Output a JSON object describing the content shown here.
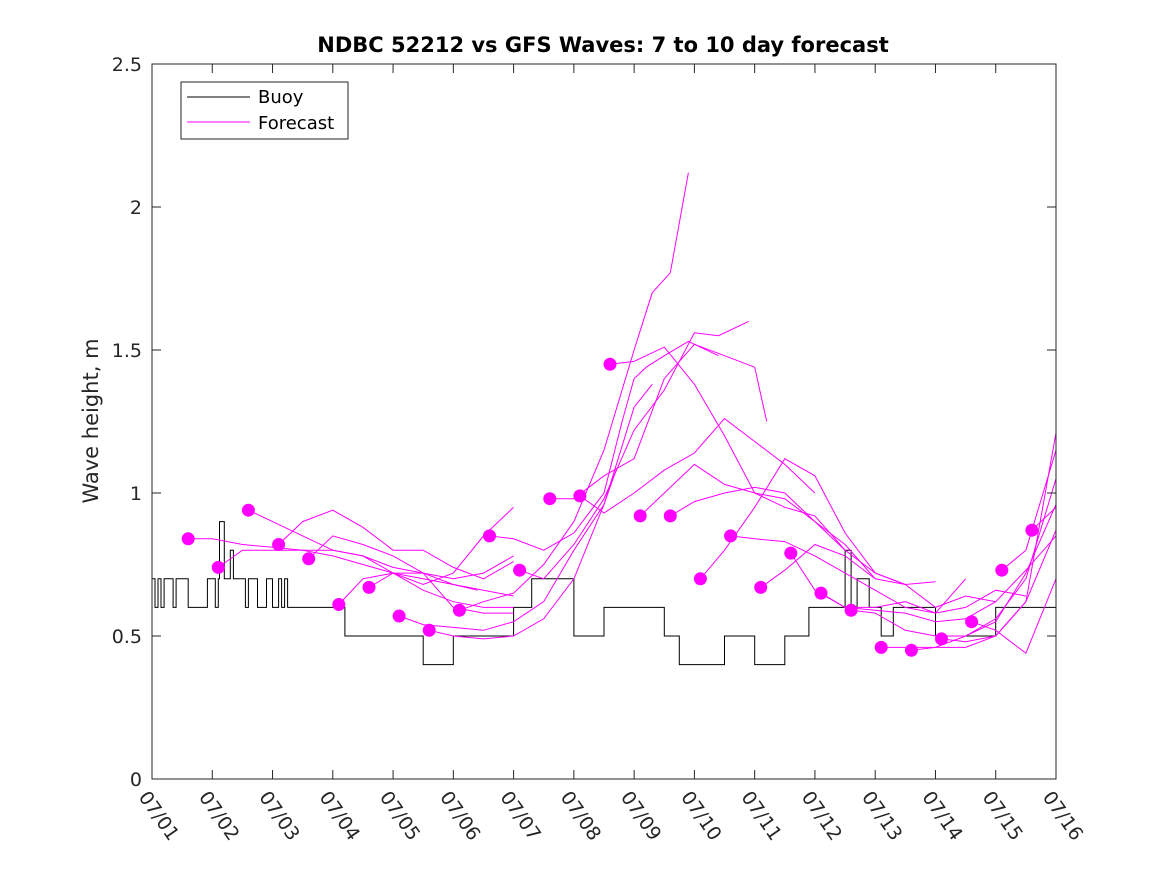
{
  "chart_data": {
    "type": "line",
    "title": "NDBC 52212 vs GFS Waves: 7 to 10 day forecast",
    "xlabel": "",
    "ylabel": "Wave height, m",
    "xlim": [
      0,
      15
    ],
    "ylim": [
      0,
      2.5
    ],
    "x_ticks": [
      0,
      1,
      2,
      3,
      4,
      5,
      6,
      7,
      8,
      9,
      10,
      11,
      12,
      13,
      14,
      15
    ],
    "x_tick_labels": [
      "07/01",
      "07/02",
      "07/03",
      "07/04",
      "07/05",
      "07/06",
      "07/07",
      "07/08",
      "07/09",
      "07/10",
      "07/11",
      "07/12",
      "07/13",
      "07/14",
      "07/15",
      "07/16"
    ],
    "y_ticks": [
      0,
      0.5,
      1,
      1.5,
      2,
      2.5
    ],
    "y_tick_labels": [
      "0",
      "0.5",
      "1",
      "1.5",
      "2",
      "2.5"
    ],
    "grid": false,
    "legend": {
      "placement": "top-left",
      "entries": [
        {
          "label": "Buoy",
          "color": "#000000"
        },
        {
          "label": "Forecast",
          "color": "#ff00ff"
        }
      ]
    },
    "colors": {
      "buoy": "#000000",
      "forecast": "#ff00ff"
    },
    "buoy": {
      "name": "Buoy",
      "x": [
        0,
        0.05,
        0.1,
        0.15,
        0.2,
        0.3,
        0.35,
        0.4,
        0.5,
        0.6,
        0.7,
        0.8,
        0.9,
        0.92,
        1.0,
        1.05,
        1.1,
        1.12,
        1.2,
        1.25,
        1.3,
        1.35,
        1.4,
        1.5,
        1.55,
        1.6,
        1.65,
        1.75,
        1.8,
        1.9,
        2.0,
        2.1,
        2.15,
        2.2,
        2.25,
        2.3,
        2.35,
        2.4,
        2.5,
        2.6,
        2.7,
        2.9,
        3.0,
        3.1,
        3.2,
        3.4,
        3.6,
        3.8,
        4.0,
        4.5,
        5.0,
        5.5,
        6.0,
        6.3,
        7.0,
        7.5,
        8.0,
        8.5,
        8.75,
        9.0,
        9.25,
        9.5,
        9.75,
        10.0,
        10.5,
        10.9,
        11.5,
        11.6,
        11.7,
        11.9,
        12.1,
        12.3,
        12.7,
        13.0,
        13.2,
        13.7,
        14.0,
        14.5,
        14.7,
        15.0
      ],
      "y": [
        0.7,
        0.6,
        0.7,
        0.6,
        0.7,
        0.7,
        0.6,
        0.7,
        0.7,
        0.6,
        0.6,
        0.6,
        0.6,
        0.7,
        0.7,
        0.6,
        0.7,
        0.9,
        0.7,
        0.7,
        0.8,
        0.7,
        0.7,
        0.7,
        0.6,
        0.7,
        0.7,
        0.6,
        0.6,
        0.7,
        0.6,
        0.7,
        0.6,
        0.7,
        0.6,
        0.6,
        0.6,
        0.6,
        0.6,
        0.6,
        0.6,
        0.6,
        0.6,
        0.6,
        0.5,
        0.5,
        0.5,
        0.5,
        0.5,
        0.4,
        0.5,
        0.5,
        0.6,
        0.7,
        0.5,
        0.6,
        0.6,
        0.5,
        0.4,
        0.4,
        0.4,
        0.5,
        0.5,
        0.4,
        0.5,
        0.6,
        0.8,
        0.6,
        0.7,
        0.6,
        0.5,
        0.6,
        0.6,
        0.5,
        0.5,
        0.5,
        0.6,
        0.6,
        0.6,
        0.6
      ]
    },
    "forecast_lines": [
      {
        "x": [
          0.6,
          1.0,
          1.5,
          2.0,
          2.5,
          3.0,
          3.5,
          4.0,
          4.5,
          5.0,
          5.4
        ],
        "y": [
          0.84,
          0.84,
          0.82,
          0.81,
          0.8,
          0.78,
          0.75,
          0.72,
          0.7,
          0.68,
          0.66
        ]
      },
      {
        "x": [
          1.1,
          1.5,
          2.0,
          2.5,
          3.0,
          3.5,
          4.0,
          4.5,
          5.0,
          5.5,
          6.0
        ],
        "y": [
          0.74,
          0.8,
          0.8,
          0.8,
          0.8,
          0.78,
          0.72,
          0.66,
          0.62,
          0.6,
          0.6
        ]
      },
      {
        "x": [
          1.6,
          2.0,
          2.5,
          3.0,
          3.5,
          4.0,
          4.5,
          5.0,
          5.5,
          6.0
        ],
        "y": [
          0.94,
          0.9,
          0.85,
          0.8,
          0.78,
          0.74,
          0.72,
          0.7,
          0.72,
          0.78
        ]
      },
      {
        "x": [
          2.1,
          2.5,
          3.0,
          3.5,
          4.0,
          4.5,
          5.0,
          5.5,
          6.0
        ],
        "y": [
          0.82,
          0.9,
          0.94,
          0.88,
          0.8,
          0.8,
          0.74,
          0.7,
          0.76
        ]
      },
      {
        "x": [
          2.6,
          3.0,
          3.5,
          4.0,
          4.5,
          5.0,
          5.5,
          6.0
        ],
        "y": [
          0.77,
          0.85,
          0.82,
          0.78,
          0.72,
          0.68,
          0.66,
          0.64
        ]
      },
      {
        "x": [
          3.1,
          3.5,
          4.0,
          4.5,
          5.0,
          5.5,
          6.0
        ],
        "y": [
          0.61,
          0.7,
          0.72,
          0.68,
          0.72,
          0.85,
          0.95
        ]
      },
      {
        "x": [
          3.6,
          4.0,
          4.5,
          5.0,
          5.5,
          6.0
        ],
        "y": [
          0.67,
          0.72,
          0.72,
          0.6,
          0.58,
          0.58
        ]
      },
      {
        "x": [
          4.1,
          4.5,
          5.0,
          5.5,
          6.0,
          6.5,
          7.0,
          7.5,
          7.7
        ],
        "y": [
          0.57,
          0.54,
          0.53,
          0.52,
          0.55,
          0.62,
          0.8,
          0.96,
          1.08
        ]
      },
      {
        "x": [
          4.6,
          5.0,
          5.5,
          6.0,
          6.5,
          7.0,
          7.5,
          8.0,
          8.3
        ],
        "y": [
          0.52,
          0.5,
          0.49,
          0.5,
          0.56,
          0.7,
          0.96,
          1.3,
          1.38
        ]
      },
      {
        "x": [
          5.1,
          5.5,
          6.0,
          6.5,
          7.0,
          7.5,
          8.0,
          8.3,
          8.6,
          8.9
        ],
        "y": [
          0.59,
          0.62,
          0.65,
          0.75,
          0.9,
          1.15,
          1.5,
          1.7,
          1.77,
          2.12
        ]
      },
      {
        "x": [
          5.6,
          6.0,
          6.5,
          7.0,
          7.5,
          7.8,
          8.0,
          8.2,
          8.5,
          8.9,
          9.4
        ],
        "y": [
          0.85,
          0.84,
          0.8,
          0.86,
          1.0,
          1.25,
          1.4,
          1.44,
          1.48,
          1.53,
          1.48
        ]
      },
      {
        "x": [
          6.1,
          6.5,
          7.0,
          7.5,
          8.0,
          8.5,
          9.0,
          9.4,
          9.9
        ],
        "y": [
          0.73,
          0.7,
          0.82,
          0.98,
          1.22,
          1.36,
          1.56,
          1.55,
          1.6
        ]
      },
      {
        "x": [
          6.6,
          7.0,
          7.5,
          8.0,
          8.5,
          9.0,
          9.5,
          10.0,
          10.2
        ],
        "y": [
          0.98,
          0.98,
          1.06,
          1.12,
          1.4,
          1.52,
          1.48,
          1.44,
          1.25
        ]
      },
      {
        "x": [
          7.1,
          7.5,
          8.0,
          8.5,
          9.0,
          9.5,
          10.0,
          10.5,
          11.0
        ],
        "y": [
          0.99,
          0.93,
          1.0,
          1.08,
          1.14,
          1.26,
          1.18,
          1.1,
          1.0
        ]
      },
      {
        "x": [
          7.6,
          8.0,
          8.5,
          9.0,
          9.5,
          10.0,
          10.5,
          11.0,
          11.5
        ],
        "y": [
          1.45,
          1.46,
          1.51,
          1.38,
          1.2,
          1.0,
          0.95,
          0.92,
          0.8
        ]
      },
      {
        "x": [
          8.1,
          8.5,
          9.0,
          9.5,
          10.0,
          10.5,
          11.0,
          11.5,
          12.0
        ],
        "y": [
          0.92,
          1.0,
          1.1,
          1.03,
          1.0,
          0.98,
          0.9,
          0.82,
          0.7
        ]
      },
      {
        "x": [
          8.6,
          9.0,
          9.5,
          10.0,
          10.5,
          11.0,
          11.5,
          12.0,
          12.5
        ],
        "y": [
          0.92,
          0.97,
          1.0,
          1.02,
          1.0,
          0.9,
          0.8,
          0.72,
          0.68
        ]
      },
      {
        "x": [
          9.1,
          9.5,
          10.0,
          10.5,
          11.0,
          11.5,
          12.0,
          12.5,
          13.0
        ],
        "y": [
          0.7,
          0.8,
          0.95,
          1.12,
          1.06,
          0.86,
          0.72,
          0.68,
          0.69
        ]
      },
      {
        "x": [
          9.6,
          10.0,
          10.5,
          11.0,
          11.5,
          12.0,
          12.5,
          13.0,
          13.5
        ],
        "y": [
          0.85,
          0.84,
          0.83,
          0.78,
          0.72,
          0.66,
          0.6,
          0.58,
          0.7
        ]
      },
      {
        "x": [
          10.1,
          10.5,
          11.0,
          11.5,
          12.0,
          12.5,
          13.0,
          13.5,
          14.0
        ],
        "y": [
          0.67,
          0.73,
          0.82,
          0.78,
          0.7,
          0.68,
          0.6,
          0.64,
          0.62
        ]
      },
      {
        "x": [
          10.6,
          11.0,
          11.5,
          12.0,
          12.5,
          13.0,
          13.5,
          14.0,
          14.5
        ],
        "y": [
          0.79,
          0.66,
          0.6,
          0.6,
          0.62,
          0.58,
          0.6,
          0.66,
          0.64
        ]
      },
      {
        "x": [
          11.1,
          11.5,
          12.0,
          12.5,
          13.0,
          13.5,
          14.0,
          14.5,
          15.0
        ],
        "y": [
          0.65,
          0.6,
          0.59,
          0.58,
          0.55,
          0.56,
          0.62,
          0.73,
          0.85
        ]
      },
      {
        "x": [
          11.6,
          12.0,
          12.5,
          13.0,
          13.5,
          14.0,
          14.5,
          15.0
        ],
        "y": [
          0.59,
          0.58,
          0.52,
          0.5,
          0.5,
          0.55,
          0.72,
          0.96
        ]
      },
      {
        "x": [
          12.1,
          12.5,
          13.0,
          13.5,
          14.0,
          14.5,
          15.0
        ],
        "y": [
          0.46,
          0.46,
          0.46,
          0.5,
          0.56,
          0.7,
          1.05
        ]
      },
      {
        "x": [
          12.6,
          13.0,
          13.5,
          14.0,
          14.5,
          15.0
        ],
        "y": [
          0.45,
          0.46,
          0.46,
          0.5,
          0.62,
          1.21
        ]
      },
      {
        "x": [
          13.1,
          13.5,
          14.0,
          14.5,
          15.0
        ],
        "y": [
          0.49,
          0.48,
          0.5,
          0.62,
          0.87
        ]
      },
      {
        "x": [
          13.6,
          14.0,
          14.5,
          15.0
        ],
        "y": [
          0.55,
          0.52,
          0.44,
          0.7
        ]
      },
      {
        "x": [
          14.1,
          14.5,
          15.0
        ],
        "y": [
          0.73,
          0.8,
          1.15
        ]
      },
      {
        "x": [
          14.6,
          15.0
        ],
        "y": [
          0.87,
          0.95
        ]
      }
    ],
    "forecast_points": {
      "x": [
        0.6,
        1.1,
        1.6,
        2.1,
        2.6,
        3.1,
        3.6,
        4.1,
        4.6,
        5.1,
        5.6,
        6.1,
        6.6,
        7.1,
        7.6,
        8.1,
        8.6,
        9.1,
        9.6,
        10.1,
        10.6,
        11.1,
        11.6,
        12.1,
        12.6,
        13.1,
        13.6,
        14.1,
        14.6
      ],
      "y": [
        0.84,
        0.74,
        0.94,
        0.82,
        0.77,
        0.61,
        0.67,
        0.57,
        0.52,
        0.59,
        0.85,
        0.73,
        0.98,
        0.99,
        1.45,
        0.92,
        0.92,
        0.7,
        0.85,
        0.67,
        0.79,
        0.65,
        0.59,
        0.46,
        0.45,
        0.49,
        0.55,
        0.73,
        0.87
      ]
    }
  }
}
